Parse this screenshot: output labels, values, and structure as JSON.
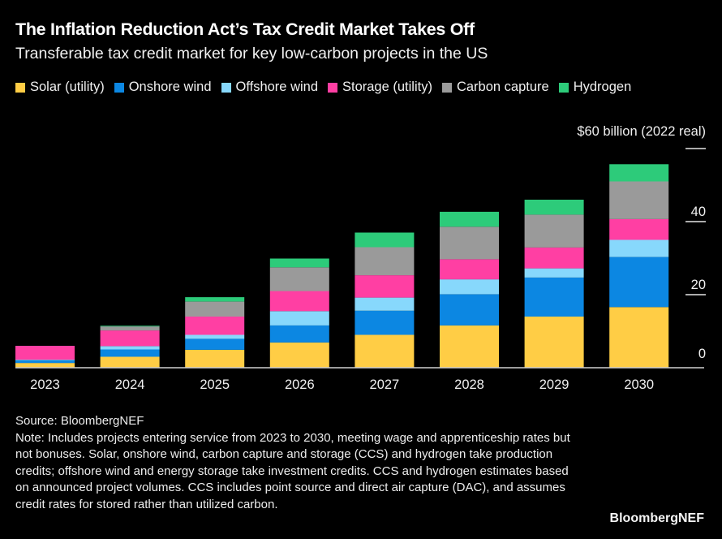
{
  "header": {
    "title": "The Inflation Reduction Act’s Tax Credit Market Takes Off",
    "subtitle": "Transferable tax credit market for key low-carbon projects in the US"
  },
  "footer": {
    "source": "Source: BloombergNEF",
    "note": "Note: Includes projects entering service from 2023 to 2030, meeting wage and apprenticeship rates but not bonuses. Solar, onshore wind, carbon capture and storage (CCS) and hydrogen take production credits; offshore wind and energy storage take investment credits. CCS and hydrogen estimates based on announced project volumes. CCS includes point source and direct air capture (DAC), and assumes credit rates for stored rather than utilized carbon.",
    "brand": "BloombergNEF"
  },
  "chart_data": {
    "type": "bar",
    "stacked": true,
    "title": "The Inflation Reduction Act’s Tax Credit Market Takes Off",
    "subtitle": "Transferable tax credit market for key low-carbon projects in the US",
    "xlabel": "",
    "ylabel": "$ billion (2022 real)",
    "unit_label": "$60 billion (2022 real)",
    "ylim": [
      0,
      60
    ],
    "yticks": [
      0,
      20,
      40,
      60
    ],
    "ytick_labels": [
      "0",
      "20",
      "40",
      ""
    ],
    "y_axis_position": "right",
    "grid": false,
    "legend_position": "top-left",
    "categories": [
      "2023",
      "2024",
      "2025",
      "2026",
      "2027",
      "2028",
      "2029",
      "2030"
    ],
    "series": [
      {
        "name": "Solar (utility)",
        "color": "#FFCD45",
        "values": [
          1.3,
          3.0,
          4.9,
          6.9,
          9.0,
          11.6,
          14.0,
          16.6
        ]
      },
      {
        "name": "Onshore wind",
        "color": "#0C87E2",
        "values": [
          0.8,
          2.0,
          3.0,
          4.7,
          6.6,
          8.5,
          10.7,
          13.7
        ]
      },
      {
        "name": "Offshore wind",
        "color": "#87D8FC",
        "values": [
          0.1,
          0.9,
          1.1,
          3.9,
          3.6,
          4.1,
          2.5,
          4.7
        ]
      },
      {
        "name": "Storage (utility)",
        "color": "#FF3FA3",
        "values": [
          3.8,
          4.3,
          5.0,
          5.5,
          6.1,
          5.5,
          5.7,
          5.7
        ]
      },
      {
        "name": "Carbon capture",
        "color": "#9A9A9A",
        "values": [
          0.0,
          1.1,
          4.1,
          6.5,
          7.7,
          8.9,
          9.0,
          10.3
        ]
      },
      {
        "name": "Hydrogen",
        "color": "#2DCB7A",
        "values": [
          0.0,
          0.2,
          1.2,
          2.4,
          4.0,
          4.1,
          4.1,
          4.7
        ]
      }
    ]
  }
}
